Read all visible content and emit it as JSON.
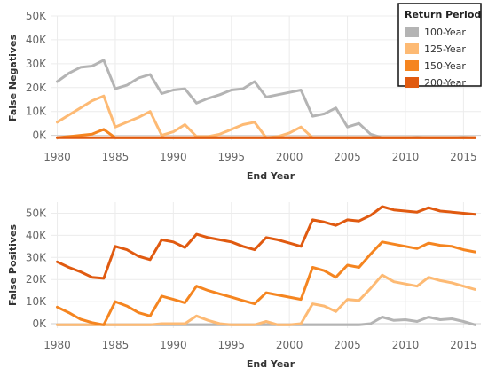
{
  "legend": {
    "title": "Return Period",
    "placement": "top-right"
  },
  "chart_data": [
    {
      "type": "line",
      "ylabel": "False Negatives",
      "xlabel": "End Year",
      "xlim": [
        1979.5,
        2016.5
      ],
      "ylim": [
        -2000,
        50000
      ],
      "x_ticks": [
        1980,
        1985,
        1990,
        1995,
        2000,
        2005,
        2010,
        2015
      ],
      "x_tick_labels": [
        "1980",
        "1985",
        "1990",
        "1995",
        "2000",
        "2005",
        "2010",
        "2015"
      ],
      "y_ticks": [
        0,
        10000,
        20000,
        30000,
        40000,
        50000
      ],
      "y_tick_labels": [
        "0K",
        "10K",
        "20K",
        "30K",
        "40K",
        "50K"
      ],
      "grid": true,
      "x": [
        1980,
        1981,
        1982,
        1983,
        1984,
        1985,
        1986,
        1987,
        1988,
        1989,
        1990,
        1991,
        1992,
        1993,
        1994,
        1995,
        1996,
        1997,
        1998,
        1999,
        2000,
        2001,
        2002,
        2003,
        2004,
        2005,
        2006,
        2007,
        2008,
        2009,
        2010,
        2011,
        2012,
        2013,
        2014,
        2015,
        2016
      ],
      "series": [
        {
          "name": "100-Year",
          "color": "#b4b4b4",
          "values": [
            22500,
            26000,
            28500,
            29000,
            31500,
            19500,
            21000,
            24000,
            25500,
            17500,
            19000,
            19500,
            13500,
            15500,
            17000,
            19000,
            19500,
            22500,
            16000,
            17000,
            18000,
            19000,
            8000,
            9000,
            11500,
            3500,
            5000,
            500,
            -1000,
            -1000,
            -1000,
            -800,
            -1000,
            -1000,
            -1000,
            -800,
            -1000
          ]
        },
        {
          "name": "125-Year",
          "color": "#fdba74",
          "values": [
            5500,
            8500,
            11500,
            14500,
            16500,
            3500,
            5500,
            7500,
            10000,
            0,
            1500,
            4500,
            -500,
            -500,
            500,
            2500,
            4500,
            5500,
            -1000,
            -500,
            1000,
            3500,
            -1000,
            -1000,
            -1000,
            -1000,
            -1000,
            -1000,
            -1000,
            -1000,
            -1000,
            -1000,
            -1000,
            -1000,
            -1000,
            -1000,
            -1000
          ]
        },
        {
          "name": "150-Year",
          "color": "#f58520",
          "values": [
            -1000,
            -500,
            0,
            500,
            2500,
            -1000,
            -1000,
            -1000,
            -1000,
            -1000,
            -1000,
            -1000,
            -1000,
            -1000,
            -1000,
            -1000,
            -1000,
            -1000,
            -1000,
            -1000,
            -1000,
            -1000,
            -1000,
            -1000,
            -1000,
            -1000,
            -1000,
            -1000,
            -1000,
            -1000,
            -1000,
            -1000,
            -1000,
            -1000,
            -1000,
            -1000,
            -1000
          ]
        },
        {
          "name": "200-Year",
          "color": "#e05a10",
          "values": [
            -1000,
            -1000,
            -1000,
            -1000,
            -1000,
            -1000,
            -1000,
            -1000,
            -1000,
            -1000,
            -1000,
            -1000,
            -1000,
            -1000,
            -1000,
            -1000,
            -1000,
            -1000,
            -1000,
            -1000,
            -1000,
            -1000,
            -1000,
            -1000,
            -1000,
            -1000,
            -1000,
            -1000,
            -1000,
            -1000,
            -1000,
            -1000,
            -1000,
            -1000,
            -1000,
            -1000,
            -1000
          ]
        }
      ]
    },
    {
      "type": "line",
      "ylabel": "False Positives",
      "xlabel": "End Year",
      "xlim": [
        1979.5,
        2016.5
      ],
      "ylim": [
        -2000,
        55000
      ],
      "x_ticks": [
        1980,
        1985,
        1990,
        1995,
        2000,
        2005,
        2010,
        2015
      ],
      "x_tick_labels": [
        "1980",
        "1985",
        "1990",
        "1995",
        "2000",
        "2005",
        "2010",
        "2015"
      ],
      "y_ticks": [
        0,
        10000,
        20000,
        30000,
        40000,
        50000
      ],
      "y_tick_labels": [
        "0K",
        "10K",
        "20K",
        "30K",
        "40K",
        "50K"
      ],
      "grid": true,
      "x": [
        1980,
        1981,
        1982,
        1983,
        1984,
        1985,
        1986,
        1987,
        1988,
        1989,
        1990,
        1991,
        1992,
        1993,
        1994,
        1995,
        1996,
        1997,
        1998,
        1999,
        2000,
        2001,
        2002,
        2003,
        2004,
        2005,
        2006,
        2007,
        2008,
        2009,
        2010,
        2011,
        2012,
        2013,
        2014,
        2015,
        2016
      ],
      "series": [
        {
          "name": "100-Year",
          "color": "#b4b4b4",
          "values": [
            -500,
            -500,
            -500,
            -500,
            -500,
            -500,
            -500,
            -500,
            -500,
            -500,
            -500,
            -500,
            -500,
            -500,
            -500,
            -500,
            -500,
            -500,
            -500,
            -500,
            -500,
            -500,
            -500,
            -500,
            -500,
            -500,
            -500,
            0,
            3000,
            1500,
            1800,
            1000,
            3000,
            1800,
            2200,
            1000,
            -500
          ]
        },
        {
          "name": "125-Year",
          "color": "#fdba74",
          "values": [
            -500,
            -500,
            -500,
            -500,
            -500,
            -500,
            -500,
            -500,
            -500,
            0,
            0,
            0,
            3500,
            1500,
            0,
            -500,
            -500,
            -500,
            1000,
            -500,
            -500,
            0,
            9000,
            8000,
            5500,
            11000,
            10500,
            16000,
            22000,
            19000,
            18000,
            17000,
            21000,
            19500,
            18500,
            17000,
            15500
          ]
        },
        {
          "name": "150-Year",
          "color": "#f58520",
          "values": [
            7500,
            5000,
            2000,
            500,
            -500,
            10000,
            8000,
            5000,
            3500,
            12500,
            11000,
            9500,
            17000,
            15000,
            13500,
            12000,
            10500,
            9000,
            14000,
            13000,
            12000,
            11000,
            25500,
            24000,
            21000,
            26500,
            25500,
            31500,
            37000,
            36000,
            35000,
            34000,
            36500,
            35500,
            35000,
            33500,
            32500
          ]
        },
        {
          "name": "200-Year",
          "color": "#e05a10",
          "values": [
            28000,
            25500,
            23500,
            21000,
            20500,
            35000,
            33500,
            30500,
            29000,
            38000,
            37000,
            34500,
            40500,
            39000,
            38000,
            37000,
            35000,
            33500,
            39000,
            38000,
            36500,
            35000,
            47000,
            46000,
            44500,
            47000,
            46500,
            49000,
            53000,
            51500,
            51000,
            50500,
            52500,
            51000,
            50500,
            50000,
            49500
          ]
        }
      ]
    }
  ]
}
